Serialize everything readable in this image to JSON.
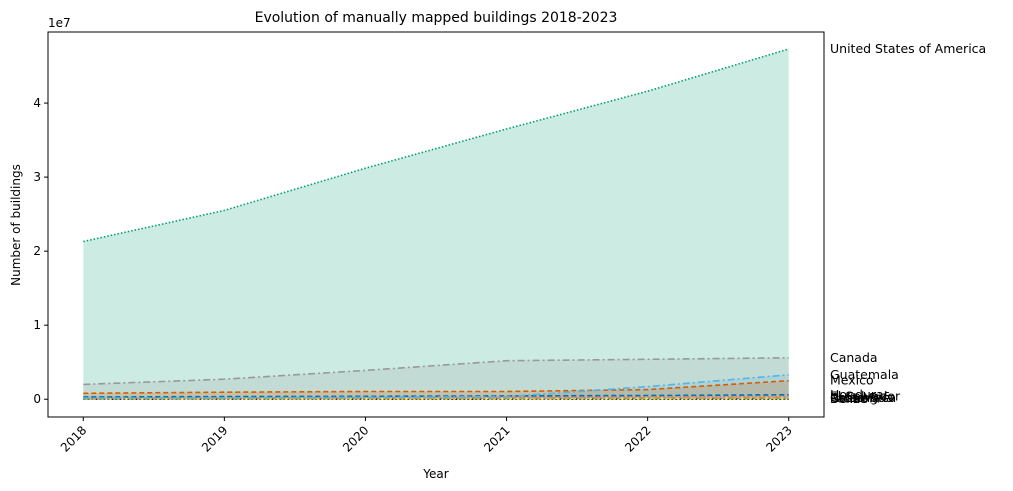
{
  "chart_data": {
    "type": "area",
    "title": "Evolution of manually mapped buildings 2018-2023",
    "xlabel": "Year",
    "ylabel": "Number of buildings",
    "y_offset_label": "1e7",
    "x": [
      2018,
      2019,
      2020,
      2021,
      2022,
      2023
    ],
    "x_tick_labels": [
      "2018",
      "2019",
      "2020",
      "2021",
      "2022",
      "2023"
    ],
    "y_ticks": [
      0,
      10000000,
      20000000,
      30000000,
      40000000
    ],
    "y_tick_labels": [
      "0",
      "1",
      "2",
      "3",
      "4"
    ],
    "ylim": [
      -2400000,
      49600000
    ],
    "xlim": [
      2017.75,
      2023.25
    ],
    "grid": false,
    "legend": "none (direct labels at right)",
    "series": [
      {
        "name": "United States of America",
        "values": [
          21300000,
          25500000,
          31200000,
          36500000,
          41600000,
          47300000
        ],
        "color": "#009e73",
        "dash": "1.5,2",
        "fill": true
      },
      {
        "name": "Canada",
        "values": [
          2000000,
          2700000,
          3900000,
          5200000,
          5400000,
          5600000
        ],
        "color": "#999999",
        "dash": "7,3,2,3",
        "fill": true
      },
      {
        "name": "Guatemala",
        "values": [
          150000,
          200000,
          250000,
          350000,
          1700000,
          3300000
        ],
        "color": "#56b4e9",
        "dash": "7,3,2,3",
        "fill": true
      },
      {
        "name": "Mexico",
        "values": [
          800000,
          950000,
          1050000,
          1050000,
          1300000,
          2500000
        ],
        "color": "#d55e00",
        "dash": "5,3",
        "fill": true
      },
      {
        "name": "Honduras",
        "values": [
          300000,
          350000,
          400000,
          450000,
          500000,
          600000
        ],
        "color": "#0072b2",
        "dash": "5,3",
        "fill": false
      },
      {
        "name": "El Salvador",
        "values": [
          150000,
          200000,
          220000,
          250000,
          300000,
          350000
        ],
        "color": "#cc79a7",
        "dash": "2,2",
        "fill": false
      },
      {
        "name": "Costa Rica",
        "values": [
          80000,
          100000,
          120000,
          150000,
          180000,
          200000
        ],
        "color": "#e69f00",
        "dash": "7,3,2,3",
        "fill": false
      },
      {
        "name": "Nicaragua",
        "values": [
          60000,
          80000,
          100000,
          120000,
          140000,
          160000
        ],
        "color": "#f0e442",
        "dash": "5,3",
        "fill": false
      },
      {
        "name": "Panama",
        "values": [
          50000,
          60000,
          80000,
          100000,
          110000,
          130000
        ],
        "color": "#009e73",
        "dash": "7,3,2,3",
        "fill": false
      },
      {
        "name": "Belize",
        "values": [
          10000,
          15000,
          20000,
          25000,
          30000,
          35000
        ],
        "color": "#000000",
        "dash": "2,2",
        "fill": false
      }
    ]
  }
}
